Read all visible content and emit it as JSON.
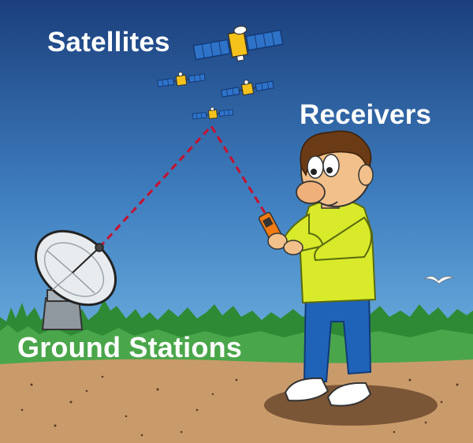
{
  "labels": {
    "satellites": "Satellites",
    "receivers": "Receivers",
    "ground_stations": "Ground Stations"
  },
  "colors": {
    "sky_top": "#1b3f7c",
    "sky_bottom": "#7fc6ee",
    "grass": "#2f8a35",
    "ground": "#c99b6b",
    "signal_line": "#c8102e",
    "shirt": "#d9ea2a",
    "jeans": "#1f63b8",
    "solar_panel": "#2f73c9",
    "satellite_body": "#f4c21a"
  },
  "icons": [
    "satellite-icon",
    "satellite-dish-icon",
    "person-with-receiver-icon",
    "bird-icon"
  ]
}
